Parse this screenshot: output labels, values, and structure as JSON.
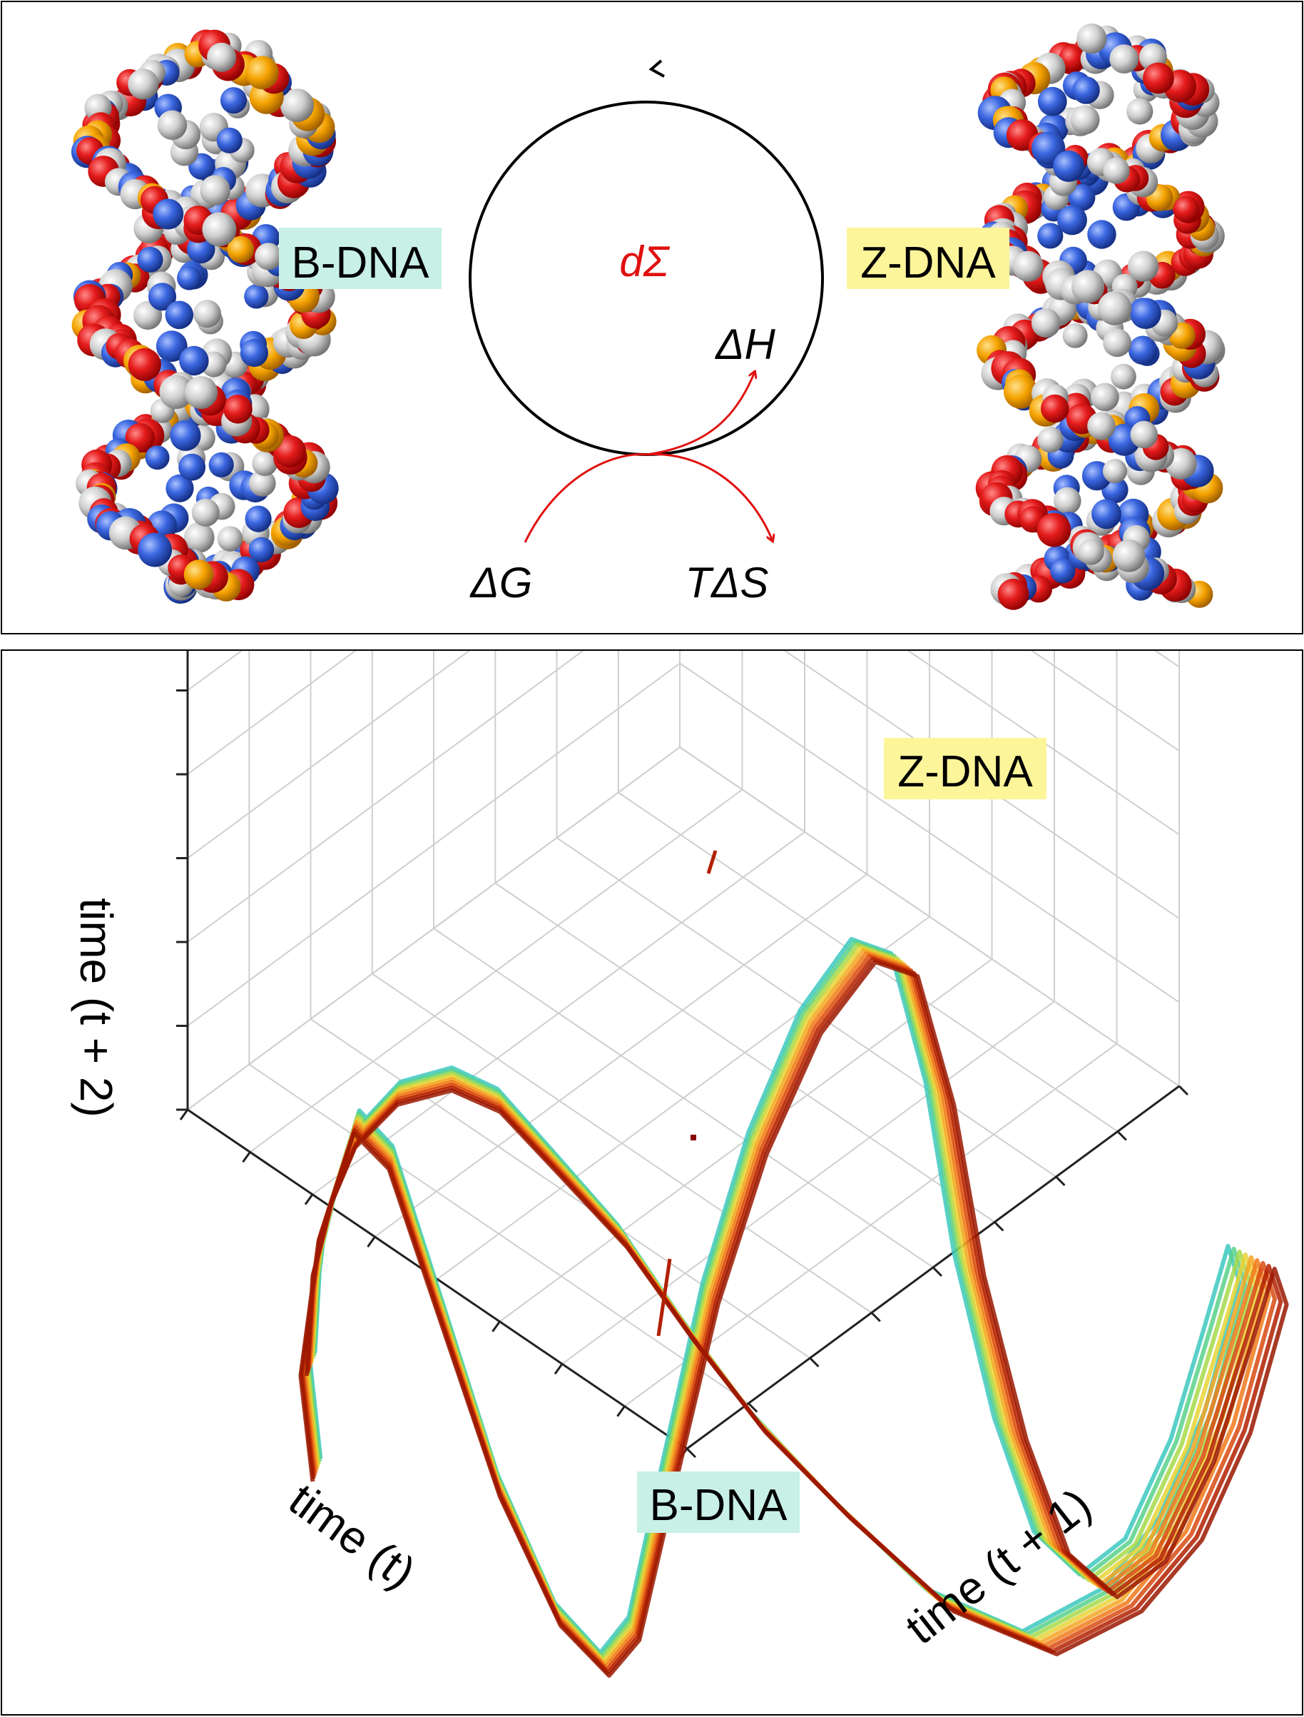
{
  "top_panel": {
    "b_dna_label": "B-DNA",
    "z_dna_label": "Z-DNA",
    "cycle_center": "dΣ",
    "delta_h": "ΔH",
    "delta_g": "ΔG",
    "t_delta_s": "TΔS"
  },
  "bottom_panel": {
    "z_dna_label": "Z-DNA",
    "b_dna_label": "B-DNA",
    "axis_x": "time (t)",
    "axis_y": "time (t + 1)",
    "axis_z": "time (t + 2)"
  },
  "colors": {
    "b_dna_highlight": "#c8f0e6",
    "z_dna_highlight": "#fdf59a",
    "thermo_red": "#e01010",
    "atom_oxygen": "#e51c1c",
    "atom_nitrogen": "#3a66e0",
    "atom_carbon": "#c8c8c8",
    "atom_phosphorus": "#f5a300",
    "trajectory_outer": "#b22000",
    "trajectory_inner": "#3cc8c0"
  }
}
